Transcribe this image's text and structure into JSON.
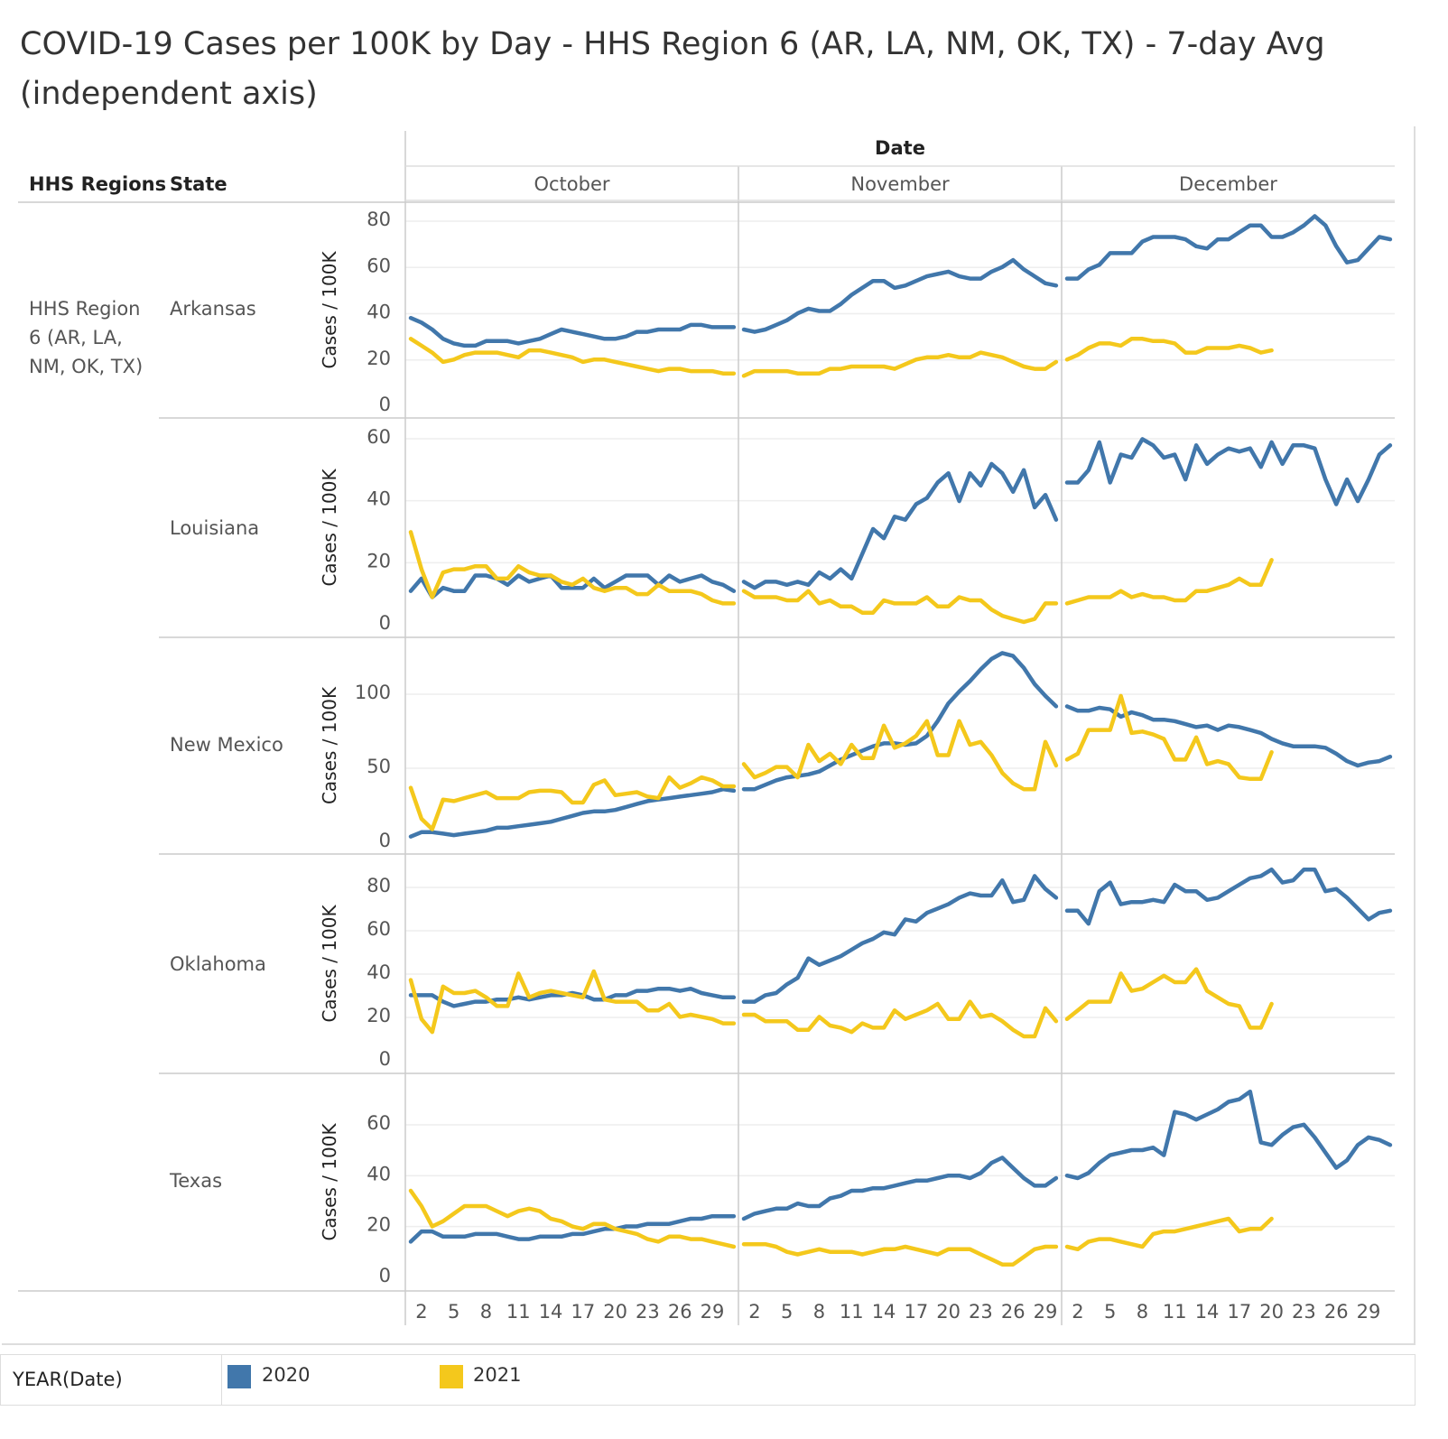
{
  "title": "COVID-19 Cases per 100K by Day - HHS Region 6 (AR, LA, NM, OK, TX) - 7-day Avg (independent axis)",
  "header": {
    "regions_label": "HHS Regions",
    "state_label": "State",
    "date_label": "Date"
  },
  "region_name": "HHS Region 6 (AR, LA, NM, OK, TX)",
  "legend": {
    "title": "YEAR(Date)",
    "items": [
      {
        "label": "2020",
        "color": "#4177ab"
      },
      {
        "label": "2021",
        "color": "#f4c81c"
      }
    ]
  },
  "chart_data": {
    "type": "line",
    "title": "COVID-19 Cases per 100K by Day - HHS Region 6 (AR, LA, NM, OK, TX) - 7-day Avg (independent axis)",
    "xlabel": "Date (day of month)",
    "ylabel": "Cases / 100K",
    "months": [
      "October",
      "November",
      "December"
    ],
    "x_tick_labels": [
      "2",
      "5",
      "8",
      "11",
      "14",
      "17",
      "20",
      "23",
      "26",
      "29"
    ],
    "series_names": [
      "2020",
      "2021"
    ],
    "grid": true,
    "legend_position": "bottom",
    "states": [
      {
        "name": "Arkansas",
        "ylim": [
          0,
          80
        ],
        "yticks": [
          0,
          20,
          40,
          60,
          80
        ],
        "series": {
          "2020": {
            "October": [
              37,
              35,
              32,
              28,
              26,
              25,
              25,
              27,
              27,
              27,
              26,
              27,
              28,
              30,
              32,
              31,
              30,
              29,
              28,
              28,
              29,
              31,
              31,
              32,
              32,
              32,
              34,
              34,
              33,
              33,
              33
            ],
            "November": [
              32,
              31,
              32,
              34,
              36,
              39,
              41,
              40,
              40,
              43,
              47,
              50,
              53,
              53,
              50,
              51,
              53,
              55,
              56,
              57,
              55,
              54,
              54,
              57,
              59,
              62,
              58,
              55,
              52,
              51
            ],
            "December": [
              54,
              54,
              58,
              60,
              65,
              65,
              65,
              70,
              72,
              72,
              72,
              71,
              68,
              67,
              71,
              71,
              74,
              77,
              77,
              72,
              72,
              74,
              77,
              81,
              77,
              68,
              61,
              62,
              67,
              72,
              71
            ]
          },
          "2021": {
            "October": [
              28,
              25,
              22,
              18,
              19,
              21,
              22,
              22,
              22,
              21,
              20,
              23,
              23,
              22,
              21,
              20,
              18,
              19,
              19,
              18,
              17,
              16,
              15,
              14,
              15,
              15,
              14,
              14,
              14,
              13,
              13
            ],
            "November": [
              12,
              14,
              14,
              14,
              14,
              13,
              13,
              13,
              15,
              15,
              16,
              16,
              16,
              16,
              15,
              17,
              19,
              20,
              20,
              21,
              20,
              20,
              22,
              21,
              20,
              18,
              16,
              15,
              15,
              18
            ],
            "December": [
              19,
              21,
              24,
              26,
              26,
              25,
              28,
              28,
              27,
              27,
              26,
              22,
              22,
              24,
              24,
              24,
              25,
              24,
              22,
              23
            ]
          }
        }
      },
      {
        "name": "Louisiana",
        "ylim": [
          0,
          60
        ],
        "yticks": [
          0,
          20,
          40,
          60
        ],
        "series": {
          "2020": {
            "October": [
              10,
              14,
              8,
              11,
              10,
              10,
              15,
              15,
              14,
              12,
              15,
              13,
              14,
              15,
              11,
              11,
              11,
              14,
              11,
              13,
              15,
              15,
              15,
              12,
              15,
              13,
              14,
              15,
              13,
              12,
              10
            ],
            "November": [
              13,
              11,
              13,
              13,
              12,
              13,
              12,
              16,
              14,
              17,
              14,
              22,
              30,
              27,
              34,
              33,
              38,
              40,
              45,
              48,
              39,
              48,
              44,
              51,
              48,
              42,
              49,
              37,
              41,
              33
            ],
            "December": [
              45,
              45,
              49,
              58,
              45,
              54,
              53,
              59,
              57,
              53,
              54,
              46,
              57,
              51,
              54,
              56,
              55,
              56,
              50,
              58,
              51,
              57,
              57,
              56,
              46,
              38,
              46,
              39,
              46,
              54,
              57
            ]
          },
          "2021": {
            "October": [
              29,
              17,
              8,
              16,
              17,
              17,
              18,
              18,
              14,
              14,
              18,
              16,
              15,
              15,
              13,
              12,
              14,
              11,
              10,
              11,
              11,
              9,
              9,
              12,
              10,
              10,
              10,
              9,
              7,
              6,
              6
            ],
            "November": [
              10,
              8,
              8,
              8,
              7,
              7,
              10,
              6,
              7,
              5,
              5,
              3,
              3,
              7,
              6,
              6,
              6,
              8,
              5,
              5,
              8,
              7,
              7,
              4,
              2,
              1,
              0,
              1,
              6,
              6
            ],
            "December": [
              6,
              7,
              8,
              8,
              8,
              10,
              8,
              9,
              8,
              8,
              7,
              7,
              10,
              10,
              11,
              12,
              14,
              12,
              12,
              20
            ]
          }
        }
      },
      {
        "name": "New Mexico",
        "ylim": [
          0,
          100
        ],
        "yticks": [
          0,
          50,
          100
        ],
        "series": {
          "2020": {
            "October": [
              2,
              5,
              5,
              4,
              3,
              4,
              5,
              6,
              8,
              8,
              9,
              10,
              11,
              12,
              14,
              16,
              18,
              19,
              19,
              20,
              22,
              24,
              26,
              27,
              28,
              29,
              30,
              31,
              32,
              34,
              33
            ],
            "November": [
              34,
              34,
              37,
              40,
              42,
              43,
              44,
              46,
              50,
              54,
              57,
              60,
              63,
              65,
              65,
              64,
              65,
              70,
              80,
              92,
              100,
              107,
              115,
              122,
              126,
              124,
              116,
              105,
              97,
              90
            ],
            "December": [
              90,
              87,
              87,
              89,
              88,
              83,
              86,
              84,
              81,
              81,
              80,
              78,
              76,
              77,
              74,
              77,
              76,
              74,
              72,
              68,
              65,
              63,
              63,
              63,
              62,
              58,
              53,
              50,
              52,
              53,
              56
            ]
          },
          "2021": {
            "October": [
              35,
              14,
              7,
              27,
              26,
              28,
              30,
              32,
              28,
              28,
              28,
              32,
              33,
              33,
              32,
              25,
              25,
              37,
              40,
              30,
              31,
              32,
              29,
              28,
              42,
              35,
              38,
              42,
              40,
              36,
              36
            ],
            "November": [
              51,
              42,
              45,
              49,
              49,
              42,
              64,
              53,
              58,
              51,
              64,
              55,
              55,
              77,
              62,
              65,
              70,
              80,
              57,
              57,
              80,
              64,
              66,
              57,
              45,
              38,
              34,
              34,
              66,
              50
            ],
            "December": [
              54,
              58,
              74,
              74,
              74,
              97,
              72,
              73,
              71,
              68,
              54,
              54,
              69,
              51,
              53,
              51,
              42,
              41,
              41,
              59
            ]
          }
        }
      },
      {
        "name": "Oklahoma",
        "ylim": [
          0,
          80
        ],
        "yticks": [
          0,
          20,
          40,
          60,
          80
        ],
        "series": {
          "2020": {
            "October": [
              29,
              29,
              29,
              26,
              24,
              25,
              26,
              26,
              27,
              27,
              28,
              27,
              28,
              29,
              29,
              30,
              29,
              27,
              27,
              29,
              29,
              31,
              31,
              32,
              32,
              31,
              32,
              30,
              29,
              28,
              28
            ],
            "November": [
              26,
              26,
              29,
              30,
              34,
              37,
              46,
              43,
              45,
              47,
              50,
              53,
              55,
              58,
              57,
              64,
              63,
              67,
              69,
              71,
              74,
              76,
              75,
              75,
              82,
              72,
              73,
              84,
              78,
              74
            ],
            "December": [
              68,
              68,
              62,
              77,
              81,
              71,
              72,
              72,
              73,
              72,
              80,
              77,
              77,
              73,
              74,
              77,
              80,
              83,
              84,
              87,
              81,
              82,
              87,
              87,
              77,
              78,
              74,
              69,
              64,
              67,
              68
            ]
          },
          "2021": {
            "October": [
              36,
              18,
              12,
              33,
              30,
              30,
              31,
              28,
              24,
              24,
              39,
              28,
              30,
              31,
              30,
              29,
              28,
              40,
              27,
              26,
              26,
              26,
              22,
              22,
              25,
              19,
              20,
              19,
              18,
              16,
              16
            ],
            "November": [
              20,
              20,
              17,
              17,
              17,
              13,
              13,
              19,
              15,
              14,
              12,
              16,
              14,
              14,
              22,
              18,
              20,
              22,
              25,
              18,
              18,
              26,
              19,
              20,
              17,
              13,
              10,
              10,
              23,
              17
            ],
            "December": [
              18,
              22,
              26,
              26,
              26,
              39,
              31,
              32,
              35,
              38,
              35,
              35,
              41,
              31,
              28,
              25,
              24,
              14,
              14,
              25
            ]
          }
        }
      },
      {
        "name": "Texas",
        "ylim": [
          0,
          60
        ],
        "yticks": [
          0,
          20,
          40,
          60
        ],
        "series": {
          "2020": {
            "October": [
              13,
              17,
              17,
              15,
              15,
              15,
              16,
              16,
              16,
              15,
              14,
              14,
              15,
              15,
              15,
              16,
              16,
              17,
              18,
              18,
              19,
              19,
              20,
              20,
              20,
              21,
              22,
              22,
              23,
              23,
              23
            ],
            "November": [
              22,
              24,
              25,
              26,
              26,
              28,
              27,
              27,
              30,
              31,
              33,
              33,
              34,
              34,
              35,
              36,
              37,
              37,
              38,
              39,
              39,
              38,
              40,
              44,
              46,
              42,
              38,
              35,
              35,
              38
            ],
            "December": [
              39,
              38,
              40,
              44,
              47,
              48,
              49,
              49,
              50,
              47,
              64,
              63,
              61,
              63,
              65,
              68,
              69,
              72,
              52,
              51,
              55,
              58,
              59,
              54,
              48,
              42,
              45,
              51,
              54,
              53,
              51
            ]
          },
          "2021": {
            "October": [
              33,
              27,
              19,
              21,
              24,
              27,
              27,
              27,
              25,
              23,
              25,
              26,
              25,
              22,
              21,
              19,
              18,
              20,
              20,
              18,
              17,
              16,
              14,
              13,
              15,
              15,
              14,
              14,
              13,
              12,
              11
            ],
            "November": [
              12,
              12,
              12,
              11,
              9,
              8,
              9,
              10,
              9,
              9,
              9,
              8,
              9,
              10,
              10,
              11,
              10,
              9,
              8,
              10,
              10,
              10,
              8,
              6,
              4,
              4,
              7,
              10,
              11,
              11
            ],
            "December": [
              11,
              10,
              13,
              14,
              14,
              13,
              12,
              11,
              16,
              17,
              17,
              18,
              19,
              20,
              21,
              22,
              17,
              18,
              18,
              22
            ]
          }
        }
      }
    ]
  }
}
